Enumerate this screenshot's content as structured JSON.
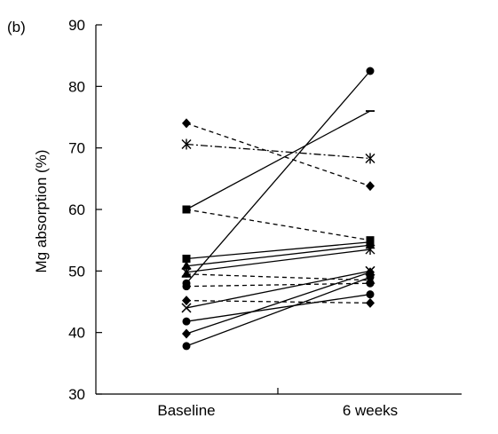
{
  "chart_data": {
    "type": "line",
    "panel_label": "(b)",
    "ylabel": "Mg absorption (%)",
    "ylim": [
      30,
      90
    ],
    "yticks": [
      30,
      40,
      50,
      60,
      70,
      80,
      90
    ],
    "categories": [
      "Baseline",
      "6 weeks"
    ],
    "grid": false,
    "legend": "none",
    "series": [
      {
        "values": [
          48.0,
          82.5
        ],
        "marker": "circle",
        "line": "solid"
      },
      {
        "values": [
          60.0,
          76.0
        ],
        "marker": "square",
        "line": "solid"
      },
      {
        "values": [
          74.0,
          63.8
        ],
        "marker": "diamond",
        "line": "dashed"
      },
      {
        "values": [
          70.6,
          68.3
        ],
        "marker": "star",
        "line": "dashdot"
      },
      {
        "values": [
          60.0,
          55.0
        ],
        "marker": "square",
        "line": "dashed"
      },
      {
        "values": [
          52.0,
          54.7
        ],
        "marker": "square",
        "line": "solid"
      },
      {
        "values": [
          50.8,
          54.2
        ],
        "marker": "triangle",
        "line": "solid"
      },
      {
        "values": [
          49.8,
          53.5
        ],
        "marker": "star",
        "line": "solid"
      },
      {
        "values": [
          49.5,
          48.5
        ],
        "marker": "triangle",
        "line": "dashed"
      },
      {
        "values": [
          47.5,
          48.0
        ],
        "marker": "circle",
        "line": "dashed"
      },
      {
        "values": [
          45.2,
          44.8
        ],
        "marker": "diamond",
        "line": "dashed"
      },
      {
        "values": [
          44.0,
          50.0
        ],
        "marker": "x",
        "line": "solid"
      },
      {
        "values": [
          41.8,
          46.2
        ],
        "marker": "circle",
        "line": "solid"
      },
      {
        "values": [
          39.8,
          49.8
        ],
        "marker": "diamond",
        "line": "solid"
      },
      {
        "values": [
          37.8,
          49.0
        ],
        "marker": "circle",
        "line": "solid"
      }
    ]
  }
}
